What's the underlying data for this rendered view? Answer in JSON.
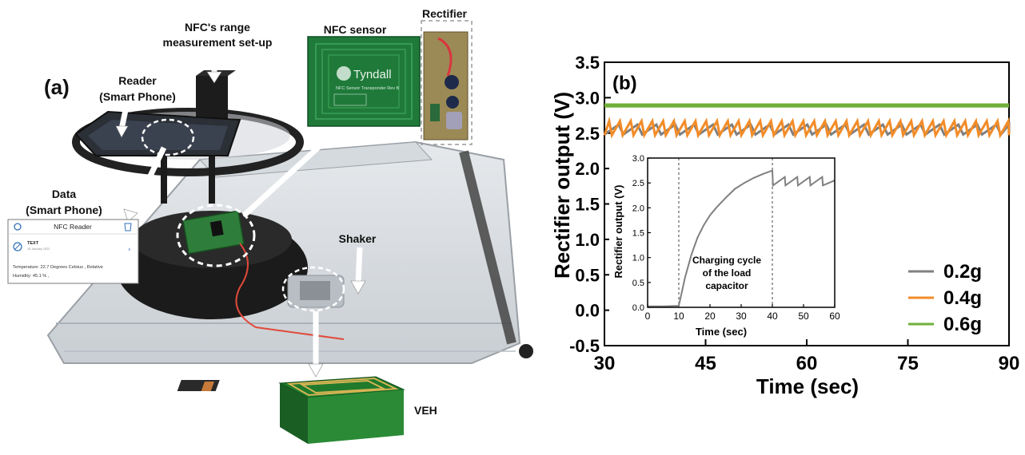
{
  "panel_a": {
    "label": "(a)",
    "callouts": {
      "range": [
        "NFC's range",
        "measurement set-up"
      ],
      "reader": [
        "Reader",
        "(Smart Phone)"
      ],
      "data": [
        "Data",
        "(Smart Phone)"
      ],
      "nfc_sensor": "NFC sensor",
      "rectifier": "Rectifier",
      "shaker": "Shaker",
      "veh": "VEH"
    },
    "nfc_board": {
      "brand": "Tyndall",
      "caption": "NFC Sensor Transponder Rev B"
    },
    "phone_card": {
      "title": "NFC Reader",
      "record_type": "TEXT",
      "date": "15 January 2022",
      "message": [
        "Temperature: 22.7 Degrees Celsius ,  Relative",
        "Humidity: 45.1 % ,"
      ]
    }
  },
  "chart_data": [
    {
      "panel_label": "(b)",
      "type": "line",
      "xlabel": "Time (sec)",
      "ylabel": "Rectifier output (V)",
      "xlim": [
        30,
        90
      ],
      "ylim": [
        -0.5,
        3.5
      ],
      "xticks": [
        30,
        45,
        60,
        75,
        90
      ],
      "yticks": [
        -0.5,
        0.0,
        0.5,
        1.0,
        1.5,
        2.0,
        2.5,
        3.0,
        3.5
      ],
      "grid": false,
      "legend_position": "bottom-right",
      "series": [
        {
          "name": "0.2g",
          "color": "#808080",
          "pattern": "sawtooth",
          "min": 2.48,
          "max": 2.62,
          "period_sec": 2.8
        },
        {
          "name": "0.4g",
          "color": "#f28c28",
          "pattern": "sawtooth",
          "min": 2.47,
          "max": 2.67,
          "period_sec": 1.6
        },
        {
          "name": "0.6g",
          "color": "#70b03a",
          "pattern": "flat",
          "min": 2.86,
          "max": 2.92
        }
      ]
    },
    {
      "type": "line",
      "inset": true,
      "ylabel": "Rectifier output (V)",
      "xlabel": "Time (sec)",
      "xlim": [
        0,
        60
      ],
      "ylim": [
        0.0,
        3.0
      ],
      "xticks": [
        0,
        10,
        20,
        30,
        40,
        50,
        60
      ],
      "yticks": [
        0.0,
        0.5,
        1.0,
        1.5,
        2.0,
        2.5,
        3.0
      ],
      "vlines_x": [
        10,
        40
      ],
      "annotation": [
        "Charging cycle",
        "of the load",
        "capacitor"
      ],
      "series": [
        {
          "color": "#808080",
          "x": [
            0,
            5,
            10,
            12,
            14,
            16,
            18,
            20,
            22,
            25,
            28,
            31,
            34,
            37,
            40,
            40.2,
            44,
            44.2,
            48,
            48.2,
            52,
            52.2,
            56,
            56.2,
            60
          ],
          "y": [
            0.02,
            0.02,
            0.03,
            0.6,
            1.05,
            1.4,
            1.65,
            1.85,
            2.0,
            2.2,
            2.38,
            2.5,
            2.6,
            2.68,
            2.75,
            2.45,
            2.62,
            2.45,
            2.62,
            2.45,
            2.62,
            2.45,
            2.62,
            2.45,
            2.55
          ]
        }
      ]
    }
  ]
}
